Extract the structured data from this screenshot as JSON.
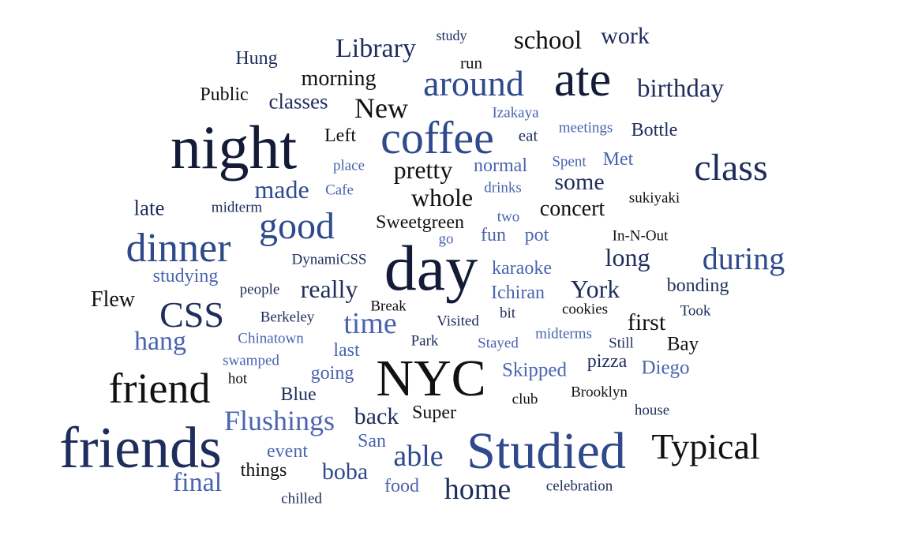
{
  "colors": {
    "darkest": "#131b37",
    "dark": "#1f2d5c",
    "mid": "#2f4a8c",
    "light": "#4a64b0",
    "black": "#111111"
  },
  "words": [
    {
      "text": "night",
      "weight": 95,
      "tone": "darkest"
    },
    {
      "text": "day",
      "weight": 100,
      "tone": "darkest"
    },
    {
      "text": "NYC",
      "weight": 92,
      "tone": "black"
    },
    {
      "text": "friends",
      "weight": 98,
      "tone": "dark"
    },
    {
      "text": "Studied",
      "weight": 90,
      "tone": "mid"
    },
    {
      "text": "coffee",
      "weight": 78,
      "tone": "mid"
    },
    {
      "text": "ate",
      "weight": 80,
      "tone": "darkest"
    },
    {
      "text": "friend",
      "weight": 72,
      "tone": "black"
    },
    {
      "text": "dinner",
      "weight": 70,
      "tone": "mid"
    },
    {
      "text": "class",
      "weight": 62,
      "tone": "dark"
    },
    {
      "text": "good",
      "weight": 62,
      "tone": "mid"
    },
    {
      "text": "Typical",
      "weight": 58,
      "tone": "black"
    },
    {
      "text": "around",
      "weight": 58,
      "tone": "mid"
    },
    {
      "text": "CSS",
      "weight": 56,
      "tone": "dark"
    },
    {
      "text": "during",
      "weight": 50,
      "tone": "mid"
    },
    {
      "text": "time",
      "weight": 46,
      "tone": "light"
    },
    {
      "text": "home",
      "weight": 46,
      "tone": "dark"
    },
    {
      "text": "able",
      "weight": 46,
      "tone": "mid"
    },
    {
      "text": "Flushings",
      "weight": 44,
      "tone": "light"
    },
    {
      "text": "New",
      "weight": 44,
      "tone": "black"
    },
    {
      "text": "Library",
      "weight": 42,
      "tone": "dark"
    },
    {
      "text": "school",
      "weight": 40,
      "tone": "black"
    },
    {
      "text": "birthday",
      "weight": 40,
      "tone": "dark"
    },
    {
      "text": "hang",
      "weight": 40,
      "tone": "light"
    },
    {
      "text": "final",
      "weight": 40,
      "tone": "light"
    },
    {
      "text": "whole",
      "weight": 40,
      "tone": "black"
    },
    {
      "text": "made",
      "weight": 40,
      "tone": "mid"
    },
    {
      "text": "pretty",
      "weight": 40,
      "tone": "black"
    },
    {
      "text": "really",
      "weight": 40,
      "tone": "dark"
    },
    {
      "text": "long",
      "weight": 40,
      "tone": "dark"
    },
    {
      "text": "York",
      "weight": 40,
      "tone": "dark"
    },
    {
      "text": "work",
      "weight": 36,
      "tone": "dark"
    },
    {
      "text": "some",
      "weight": 36,
      "tone": "dark"
    },
    {
      "text": "first",
      "weight": 36,
      "tone": "black"
    },
    {
      "text": "back",
      "weight": 36,
      "tone": "dark"
    },
    {
      "text": "boba",
      "weight": 36,
      "tone": "mid"
    },
    {
      "text": "morning",
      "weight": 34,
      "tone": "black"
    },
    {
      "text": "concert",
      "weight": 34,
      "tone": "black"
    },
    {
      "text": "Flew",
      "weight": 34,
      "tone": "black"
    },
    {
      "text": "classes",
      "weight": 32,
      "tone": "dark"
    },
    {
      "text": "late",
      "weight": 32,
      "tone": "dark"
    },
    {
      "text": "Bay",
      "weight": 30,
      "tone": "black"
    },
    {
      "text": "Skipped",
      "weight": 30,
      "tone": "light"
    },
    {
      "text": "Diego",
      "weight": 30,
      "tone": "light"
    },
    {
      "text": "karaoke",
      "weight": 28,
      "tone": "light"
    },
    {
      "text": "Sweetgreen",
      "weight": 28,
      "tone": "black"
    },
    {
      "text": "Ichiran",
      "weight": 28,
      "tone": "light"
    },
    {
      "text": "pizza",
      "weight": 28,
      "tone": "dark"
    },
    {
      "text": "bonding",
      "weight": 28,
      "tone": "dark"
    },
    {
      "text": "Bottle",
      "weight": 28,
      "tone": "dark"
    },
    {
      "text": "Left",
      "weight": 28,
      "tone": "black"
    },
    {
      "text": "Hung",
      "weight": 28,
      "tone": "dark"
    },
    {
      "text": "Public",
      "weight": 28,
      "tone": "black"
    },
    {
      "text": "normal",
      "weight": 28,
      "tone": "light"
    },
    {
      "text": "pot",
      "weight": 28,
      "tone": "light"
    },
    {
      "text": "fun",
      "weight": 28,
      "tone": "light"
    },
    {
      "text": "last",
      "weight": 28,
      "tone": "light"
    },
    {
      "text": "going",
      "weight": 28,
      "tone": "light"
    },
    {
      "text": "Blue",
      "weight": 28,
      "tone": "dark"
    },
    {
      "text": "Super",
      "weight": 28,
      "tone": "black"
    },
    {
      "text": "San",
      "weight": 28,
      "tone": "light"
    },
    {
      "text": "event",
      "weight": 28,
      "tone": "light"
    },
    {
      "text": "things",
      "weight": 28,
      "tone": "black"
    },
    {
      "text": "food",
      "weight": 28,
      "tone": "light"
    },
    {
      "text": "studying",
      "weight": 28,
      "tone": "light"
    },
    {
      "text": "Met",
      "weight": 28,
      "tone": "light"
    },
    {
      "text": "run",
      "weight": 24,
      "tone": "black"
    },
    {
      "text": "eat",
      "weight": 24,
      "tone": "dark"
    },
    {
      "text": "Izakaya",
      "weight": 22,
      "tone": "light"
    },
    {
      "text": "meetings",
      "weight": 22,
      "tone": "light"
    },
    {
      "text": "Spent",
      "weight": 22,
      "tone": "light"
    },
    {
      "text": "place",
      "weight": 22,
      "tone": "light"
    },
    {
      "text": "Cafe",
      "weight": 22,
      "tone": "light"
    },
    {
      "text": "drinks",
      "weight": 22,
      "tone": "light"
    },
    {
      "text": "two",
      "weight": 22,
      "tone": "light"
    },
    {
      "text": "go",
      "weight": 22,
      "tone": "light"
    },
    {
      "text": "sukiyaki",
      "weight": 22,
      "tone": "black"
    },
    {
      "text": "In-N-Out",
      "weight": 22,
      "tone": "black"
    },
    {
      "text": "midterm",
      "weight": 22,
      "tone": "dark"
    },
    {
      "text": "DynamiCSS",
      "weight": 22,
      "tone": "dark"
    },
    {
      "text": "people",
      "weight": 22,
      "tone": "dark"
    },
    {
      "text": "Berkeley",
      "weight": 22,
      "tone": "dark"
    },
    {
      "text": "Chinatown",
      "weight": 22,
      "tone": "light"
    },
    {
      "text": "swamped",
      "weight": 22,
      "tone": "light"
    },
    {
      "text": "hot",
      "weight": 22,
      "tone": "black"
    },
    {
      "text": "Break",
      "weight": 22,
      "tone": "black"
    },
    {
      "text": "Visited",
      "weight": 22,
      "tone": "dark"
    },
    {
      "text": "bit",
      "weight": 22,
      "tone": "dark"
    },
    {
      "text": "cookies",
      "weight": 22,
      "tone": "black"
    },
    {
      "text": "Took",
      "weight": 22,
      "tone": "dark"
    },
    {
      "text": "midterms",
      "weight": 22,
      "tone": "light"
    },
    {
      "text": "Stayed",
      "weight": 22,
      "tone": "light"
    },
    {
      "text": "Still",
      "weight": 22,
      "tone": "dark"
    },
    {
      "text": "Park",
      "weight": 22,
      "tone": "dark"
    },
    {
      "text": "club",
      "weight": 22,
      "tone": "black"
    },
    {
      "text": "Brooklyn",
      "weight": 22,
      "tone": "black"
    },
    {
      "text": "house",
      "weight": 22,
      "tone": "dark"
    },
    {
      "text": "celebration",
      "weight": 22,
      "tone": "dark"
    },
    {
      "text": "chilled",
      "weight": 22,
      "tone": "dark"
    },
    {
      "text": "study",
      "weight": 20,
      "tone": "dark"
    }
  ]
}
